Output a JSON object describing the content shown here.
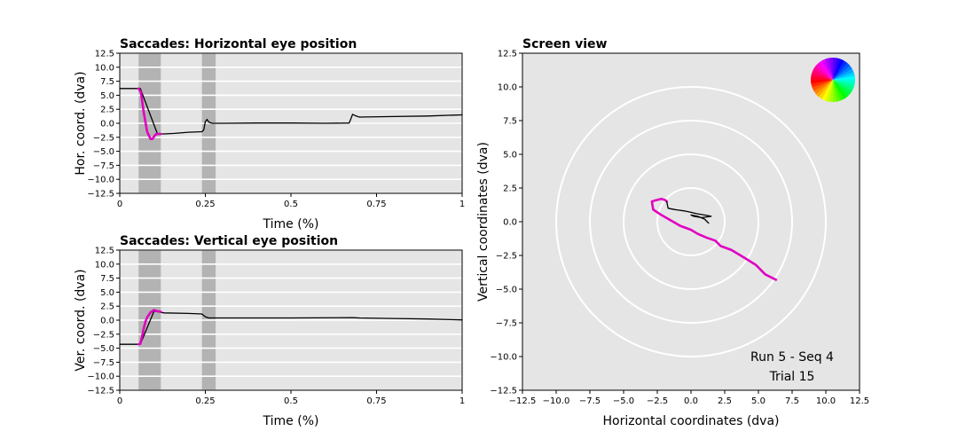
{
  "chart_data": [
    {
      "id": "horizontal",
      "type": "line",
      "title": "Saccades: Horizontal eye position",
      "xlabel": "Time (%)",
      "ylabel": "Hor. coord. (dva)",
      "xlim": [
        0,
        1
      ],
      "ylim": [
        -12.5,
        12.5
      ],
      "xticks": [
        0,
        0.25,
        0.5,
        0.75,
        1
      ],
      "xtick_labels": [
        "0",
        "0.25",
        "0.5",
        "0.75",
        "1"
      ],
      "yticks": [
        12.5,
        10.0,
        7.5,
        5.0,
        2.5,
        0.0,
        -2.5,
        -5.0,
        -7.5,
        -10.0,
        -12.5
      ],
      "ytick_labels": [
        "12.5",
        "10.0",
        "7.5",
        "5.0",
        "2.5",
        "0.0",
        "−2.5",
        "−5.0",
        "−7.5",
        "−10.0",
        "−12.5"
      ],
      "grid": "horizontal",
      "background": "#e5e5e5",
      "saccade_windows": [
        [
          0.055,
          0.12
        ],
        [
          0.24,
          0.28
        ]
      ],
      "series": [
        {
          "color": "#000000",
          "x": [
            0,
            0.05,
            0.06,
            0.11,
            0.13,
            0.16,
            0.2,
            0.24,
            0.245,
            0.25,
            0.255,
            0.26,
            0.27,
            0.3,
            0.4,
            0.5,
            0.6,
            0.67,
            0.675,
            0.68,
            0.69,
            0.7,
            0.8,
            0.9,
            1.0
          ],
          "y": [
            6.2,
            6.2,
            6.2,
            -1.9,
            -1.9,
            -1.8,
            -1.6,
            -1.5,
            -1.2,
            0.3,
            0.7,
            0.2,
            0.0,
            0.0,
            0.05,
            0.05,
            0.0,
            0.05,
            0.8,
            1.6,
            1.3,
            1.1,
            1.2,
            1.3,
            1.5
          ]
        },
        {
          "color": "#e000c0",
          "x": [
            0.055,
            0.062,
            0.07,
            0.08,
            0.09,
            0.095,
            0.1,
            0.105,
            0.11,
            0.115,
            0.12
          ],
          "y": [
            6.2,
            5.5,
            2.0,
            -1.5,
            -2.8,
            -2.8,
            -2.4,
            -2.0,
            -1.9,
            -1.9,
            -1.9
          ]
        }
      ]
    },
    {
      "id": "vertical",
      "type": "line",
      "title": "Saccades: Vertical eye position",
      "xlabel": "Time (%)",
      "ylabel": "Ver. coord. (dva)",
      "xlim": [
        0,
        1
      ],
      "ylim": [
        -12.5,
        12.5
      ],
      "xticks": [
        0,
        0.25,
        0.5,
        0.75,
        1
      ],
      "xtick_labels": [
        "0",
        "0.25",
        "0.5",
        "0.75",
        "1"
      ],
      "yticks": [
        12.5,
        10.0,
        7.5,
        5.0,
        2.5,
        0.0,
        -2.5,
        -5.0,
        -7.5,
        -10.0,
        -12.5
      ],
      "ytick_labels": [
        "12.5",
        "10.0",
        "7.5",
        "5.0",
        "2.5",
        "0.0",
        "−2.5",
        "−5.0",
        "−7.5",
        "−10.0",
        "−12.5"
      ],
      "grid": "horizontal",
      "background": "#e5e5e5",
      "saccade_windows": [
        [
          0.055,
          0.12
        ],
        [
          0.24,
          0.28
        ]
      ],
      "series": [
        {
          "color": "#000000",
          "x": [
            0,
            0.05,
            0.06,
            0.1,
            0.11,
            0.13,
            0.2,
            0.24,
            0.25,
            0.26,
            0.27,
            0.3,
            0.5,
            0.68,
            0.7,
            0.8,
            0.9,
            1.0
          ],
          "y": [
            -4.3,
            -4.3,
            -4.3,
            1.6,
            1.5,
            1.3,
            1.2,
            1.1,
            0.6,
            0.4,
            0.4,
            0.4,
            0.4,
            0.45,
            0.4,
            0.3,
            0.2,
            0.05
          ]
        },
        {
          "color": "#e000c0",
          "x": [
            0.055,
            0.06,
            0.065,
            0.07,
            0.075,
            0.08,
            0.09,
            0.1,
            0.11,
            0.12
          ],
          "y": [
            -4.3,
            -4.2,
            -3.0,
            -1.5,
            -0.3,
            0.5,
            1.4,
            1.8,
            1.6,
            1.5
          ]
        }
      ]
    },
    {
      "id": "screen",
      "type": "scatter",
      "title": "Screen view",
      "xlabel": "Horizontal coordinates (dva)",
      "ylabel": "Vertical coordinates (dva)",
      "xlim": [
        -12.5,
        12.5
      ],
      "ylim": [
        -12.5,
        12.5
      ],
      "xticks": [
        -12.5,
        -10.0,
        -7.5,
        -5.0,
        -2.5,
        0.0,
        2.5,
        5.0,
        7.5,
        10.0,
        12.5
      ],
      "xtick_labels": [
        "−12.5",
        "−10.0",
        "−7.5",
        "−5.0",
        "−2.5",
        "0.0",
        "2.5",
        "5.0",
        "7.5",
        "10.0",
        "12.5"
      ],
      "yticks": [
        12.5,
        10.0,
        7.5,
        5.0,
        2.5,
        0.0,
        -2.5,
        -5.0,
        -7.5,
        -10.0,
        -12.5
      ],
      "ytick_labels": [
        "12.5",
        "10.0",
        "7.5",
        "5.0",
        "2.5",
        "0.0",
        "−2.5",
        "−5.0",
        "−7.5",
        "−10.0",
        "−12.5"
      ],
      "background": "#e5e5e5",
      "rings_radius": [
        2.5,
        5.0,
        7.5,
        10.0
      ],
      "annotation_lines": [
        "Run 5 - Seq 4",
        "Trial 15"
      ],
      "color_wheel": true,
      "series": [
        {
          "color": "#e000c0",
          "x": [
            6.3,
            5.5,
            4.8,
            4.0,
            3.0,
            2.2,
            1.8,
            1.2,
            0.5,
            0.0,
            -0.8,
            -1.5,
            -2.2,
            -2.8,
            -2.9,
            -2.6,
            -2.2,
            -1.9,
            -1.8
          ],
          "y": [
            -4.3,
            -3.9,
            -3.2,
            -2.7,
            -2.1,
            -1.8,
            -1.4,
            -1.2,
            -0.9,
            -0.6,
            -0.3,
            0.1,
            0.5,
            0.9,
            1.5,
            1.6,
            1.7,
            1.6,
            1.5
          ]
        },
        {
          "color": "#000000",
          "x": [
            -1.8,
            -1.7,
            -1.2,
            -0.5,
            0.0,
            0.4,
            1.0,
            1.5,
            0.8,
            0.2,
            0.0,
            0.5,
            1.0,
            1.3
          ],
          "y": [
            1.5,
            1.0,
            0.9,
            0.8,
            0.7,
            0.6,
            0.5,
            0.4,
            0.3,
            0.4,
            0.5,
            0.4,
            0.2,
            -0.1
          ]
        }
      ]
    }
  ]
}
